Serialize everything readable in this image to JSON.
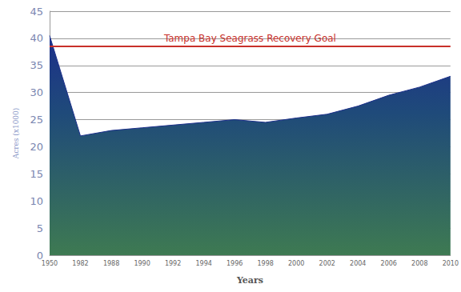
{
  "chart_data": {
    "type": "area",
    "x_label": "Years",
    "y_label": "Acres (x1000)",
    "categories": [
      "1950",
      "1982",
      "1988",
      "1990",
      "1992",
      "1994",
      "1996",
      "1998",
      "2000",
      "2002",
      "2004",
      "2006",
      "2008",
      "2010"
    ],
    "values": [
      40.5,
      22,
      23,
      23.5,
      24,
      24.5,
      25,
      24.5,
      25.3,
      26,
      27.5,
      29.5,
      31,
      33
    ],
    "color": "#1c2f8a",
    "ylim": [
      0,
      45
    ],
    "yticks": [
      0,
      5,
      10,
      15,
      20,
      25,
      30,
      35,
      40,
      45
    ],
    "grid": true,
    "annotations": [
      {
        "text": "Tampa Bay Seagrass Recovery Goal",
        "y": 38.5,
        "color": "#c8302a"
      }
    ]
  }
}
